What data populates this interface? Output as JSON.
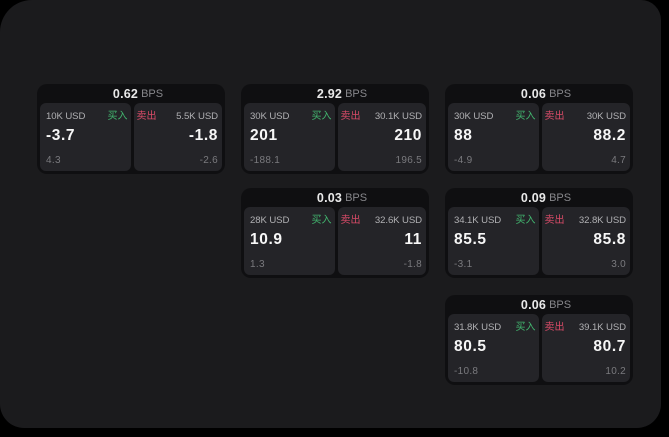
{
  "colors": {
    "background": "#000000",
    "surface": "#1b1b1d",
    "panel": "#0f0f11",
    "card": "#242428",
    "buy_green": "#42b66f",
    "sell_red": "#d94b68"
  },
  "bps_unit": "BPS",
  "buy_label": "买入",
  "sell_label": "卖出",
  "panels": [
    {
      "row": 1,
      "col": 1,
      "bps": "0.62",
      "buy": {
        "amount": "10K USD",
        "value": "-3.7",
        "sub": "4.3"
      },
      "sell": {
        "amount": "5.5K USD",
        "value": "-1.8",
        "sub": "-2.6"
      }
    },
    {
      "row": 1,
      "col": 2,
      "bps": "2.92",
      "buy": {
        "amount": "30K USD",
        "value": "201",
        "sub": "-188.1"
      },
      "sell": {
        "amount": "30.1K USD",
        "value": "210",
        "sub": "196.5"
      }
    },
    {
      "row": 1,
      "col": 3,
      "bps": "0.06",
      "buy": {
        "amount": "30K USD",
        "value": "88",
        "sub": "-4.9"
      },
      "sell": {
        "amount": "30K USD",
        "value": "88.2",
        "sub": "4.7"
      }
    },
    {
      "row": 2,
      "col": 2,
      "bps": "0.03",
      "buy": {
        "amount": "28K USD",
        "value": "10.9",
        "sub": "1.3"
      },
      "sell": {
        "amount": "32.6K USD",
        "value": "11",
        "sub": "-1.8"
      }
    },
    {
      "row": 2,
      "col": 3,
      "bps": "0.09",
      "buy": {
        "amount": "34.1K USD",
        "value": "85.5",
        "sub": "-3.1"
      },
      "sell": {
        "amount": "32.8K USD",
        "value": "85.8",
        "sub": "3.0"
      }
    },
    {
      "row": 3,
      "col": 3,
      "bps": "0.06",
      "buy": {
        "amount": "31.8K USD",
        "value": "80.5",
        "sub": "-10.8"
      },
      "sell": {
        "amount": "39.1K USD",
        "value": "80.7",
        "sub": "10.2"
      }
    }
  ]
}
